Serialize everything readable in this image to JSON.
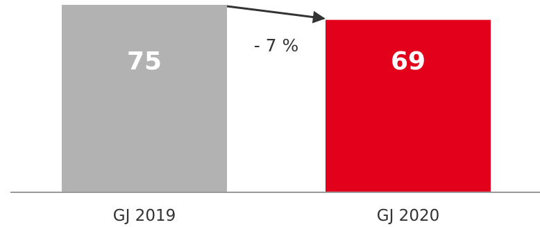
{
  "chart_data": {
    "type": "bar",
    "categories": [
      "GJ 2019",
      "GJ 2020"
    ],
    "values": [
      75,
      69
    ],
    "data_labels": [
      "75",
      "69"
    ],
    "colors": [
      "#b2b2b2",
      "#e2001a"
    ],
    "change_annotation": "- 7 %",
    "arrow_color": "#333333",
    "axis_color": "#999999",
    "grid": false,
    "legend": "none",
    "title": "",
    "xlabel": "",
    "ylabel": ""
  }
}
